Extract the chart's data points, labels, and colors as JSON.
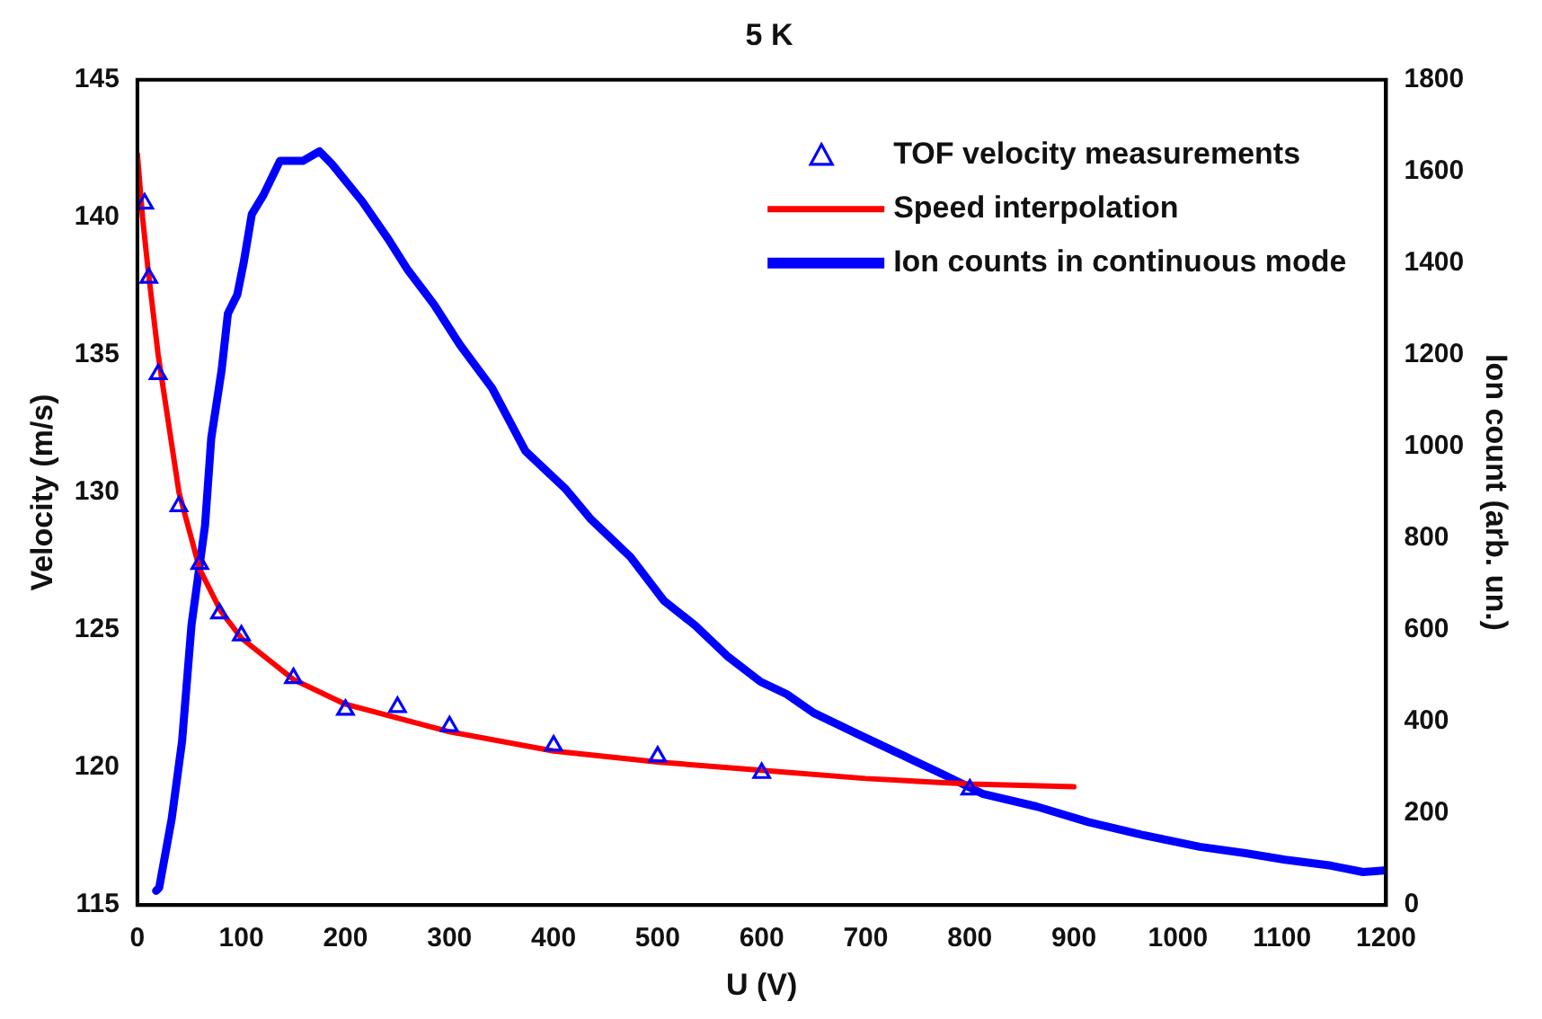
{
  "chart_data": {
    "type": "line",
    "title": "5 K",
    "xlabel": "U (V)",
    "ylabel": "Velocity (m/s)",
    "y2label": "Ion count (arb. un.)",
    "xlim": [
      0,
      1200
    ],
    "xticks": [
      0,
      100,
      200,
      300,
      400,
      500,
      600,
      700,
      800,
      900,
      1000,
      1100,
      1200
    ],
    "ylim": [
      115,
      145
    ],
    "yticks": [
      115,
      120,
      125,
      130,
      135,
      140,
      145
    ],
    "y2lim": [
      0,
      1800
    ],
    "y2ticks": [
      0,
      200,
      400,
      600,
      800,
      1000,
      1200,
      1400,
      1600,
      1800
    ],
    "grid": false,
    "legend": "top right",
    "series": [
      {
        "name": "TOF velocity measurements",
        "type": "scatter",
        "marker": "triangle",
        "color": "#0000ff",
        "x": [
          7,
          11,
          20,
          40,
          60,
          79,
          100,
          150,
          200,
          250,
          300,
          400,
          500,
          600,
          800
        ],
        "values": [
          140.5,
          137.8,
          134.3,
          129.5,
          127.4,
          125.6,
          124.8,
          123.25,
          122.1,
          122.2,
          121.5,
          120.8,
          120.4,
          119.8,
          119.2
        ]
      },
      {
        "name": "Speed interpolation",
        "type": "line",
        "marker": "none",
        "color": "#ff0000",
        "x": [
          0,
          5,
          10,
          20,
          40,
          60,
          80,
          100,
          150,
          200,
          300,
          400,
          500,
          600,
          700,
          800,
          900
        ],
        "values": [
          142.3,
          140,
          138.2,
          135,
          130,
          127.2,
          125.7,
          124.7,
          123.2,
          122.3,
          121.3,
          120.6,
          120.2,
          119.9,
          119.6,
          119.4,
          119.3
        ]
      },
      {
        "name": "Ion counts in continuous mode",
        "type": "line",
        "marker": "none",
        "axis": "y2",
        "color": "#0000ff",
        "x": [
          18,
          21,
          33,
          43,
          52,
          65,
          71,
          81,
          87,
          96,
          102,
          110,
          121,
          137,
          159,
          175,
          187,
          216,
          241,
          260,
          285,
          310,
          341,
          373,
          411,
          436,
          474,
          506,
          536,
          568,
          599,
          624,
          650,
          694,
          738,
          776,
          813,
          864,
          914,
          964,
          1021,
          1065,
          1103,
          1147,
          1178,
          1200
        ],
        "values": [
          31,
          38,
          188,
          358,
          610,
          827,
          1018,
          1167,
          1290,
          1331,
          1399,
          1507,
          1548,
          1623,
          1623,
          1644,
          1616,
          1535,
          1453,
          1385,
          1310,
          1222,
          1127,
          990,
          909,
          841,
          759,
          664,
          610,
          541,
          487,
          460,
          419,
          371,
          324,
          283,
          242,
          215,
          181,
          154,
          127,
          113,
          99,
          86,
          72,
          76
        ]
      }
    ]
  }
}
